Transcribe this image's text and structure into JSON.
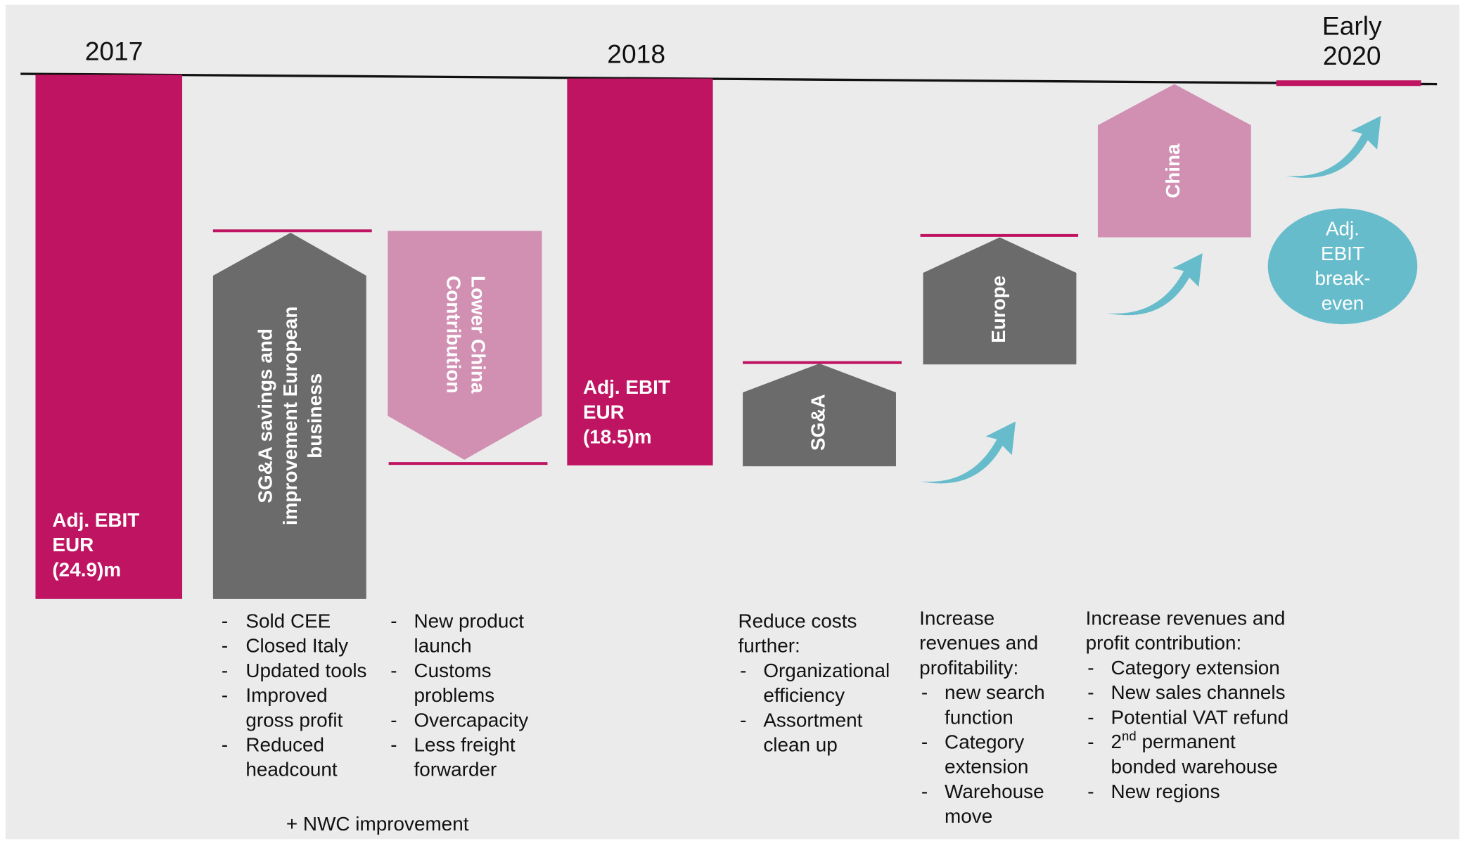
{
  "years": [
    {
      "lines": [
        "2017"
      ]
    },
    {
      "lines": [
        "2018"
      ]
    },
    {
      "lines": [
        "Early",
        "2020"
      ]
    }
  ],
  "blocks": {
    "ebit_2017": {
      "lines": [
        "Adj. EBIT",
        "EUR",
        "(24.9)m"
      ]
    },
    "sga_europe": {
      "lines": [
        "SG&A savings and",
        "improvement European",
        "business"
      ]
    },
    "lower_china": {
      "lines": [
        "Lower China",
        "Contribution"
      ]
    },
    "ebit_2018": {
      "lines": [
        "Adj. EBIT",
        "EUR",
        "(18.5)m"
      ]
    },
    "sga": {
      "lines": [
        "SG&A"
      ]
    },
    "europe": {
      "lines": [
        "Europe"
      ]
    },
    "china": {
      "lines": [
        "China"
      ]
    },
    "breakeven": {
      "lines": [
        "Adj.",
        "EBIT",
        "break-",
        "even"
      ]
    }
  },
  "notes": [
    {
      "heading": [],
      "bullets": [
        [
          "Sold CEE"
        ],
        [
          "Closed Italy"
        ],
        [
          "Updated tools"
        ],
        [
          "Improved",
          "gross profit"
        ],
        [
          "Reduced",
          "headcount"
        ]
      ]
    },
    {
      "heading": [],
      "bullets": [
        [
          "New product",
          "launch"
        ],
        [
          "Customs",
          "problems"
        ],
        [
          "Overcapacity"
        ],
        [
          "Less freight",
          "forwarder"
        ]
      ]
    },
    {
      "heading": [
        "Reduce costs",
        "further:"
      ],
      "bullets": [
        [
          "Organizational",
          "efficiency"
        ],
        [
          "Assortment",
          "clean up"
        ]
      ]
    },
    {
      "heading": [
        "Increase",
        "revenues and",
        "profitability:"
      ],
      "bullets": [
        [
          "new search",
          "function"
        ],
        [
          "Category",
          "extension"
        ],
        [
          "Warehouse",
          "move"
        ]
      ]
    },
    {
      "heading": [
        "Increase revenues and",
        "profit contribution:"
      ],
      "bullets": [
        [
          "Category extension"
        ],
        [
          "New sales channels"
        ],
        [
          "Potential VAT refund"
        ],
        [
          {
            "base": "2",
            "sup": "nd",
            "rest": " permanent"
          },
          "bonded warehouse"
        ],
        [
          "New regions"
        ]
      ]
    }
  ],
  "bullet_mark": "-",
  "footnote": "+ NWC improvement"
}
